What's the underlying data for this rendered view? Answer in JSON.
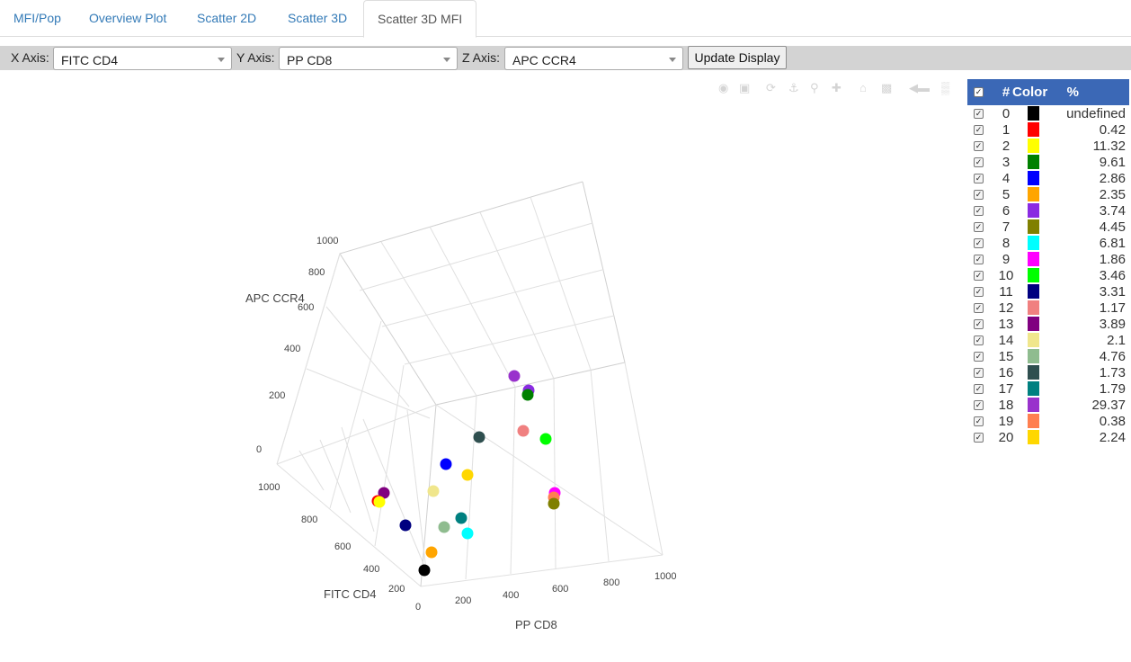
{
  "tabs": [
    {
      "label": "MFI/Pop",
      "active": false
    },
    {
      "label": "Overview Plot",
      "active": false
    },
    {
      "label": "Scatter 2D",
      "active": false
    },
    {
      "label": "Scatter 3D",
      "active": false
    },
    {
      "label": "Scatter 3D MFI",
      "active": true
    }
  ],
  "toolbar": {
    "x_label": "X Axis:",
    "x_value": "FITC CD4",
    "y_label": "Y Axis:",
    "y_value": "PP CD8",
    "z_label": "Z Axis:",
    "z_value": "APC CCR4",
    "update_label": "Update Display"
  },
  "modebar_icons": [
    "camera-icon",
    "save-icon",
    "orbit-rotation-icon",
    "turntable-rotation-icon",
    "zoom-icon",
    "pan-icon",
    "home-icon",
    "camera-reset-icon",
    "hover-closest-icon",
    "plotly-logo-icon"
  ],
  "plot": {
    "x_title": "FITC CD4",
    "y_title": "PP CD8",
    "z_title": "APC CCR4",
    "x_ticks": [
      "0",
      "200",
      "400",
      "600",
      "800",
      "1000"
    ],
    "y_ticks": [
      "200",
      "400",
      "600",
      "800",
      "1000"
    ],
    "z_ticks": [
      "0",
      "200",
      "400",
      "600",
      "800",
      "1000"
    ]
  },
  "legend": {
    "header": {
      "num": "#",
      "color": "Color",
      "pct": "%",
      "checked": true
    },
    "rows": [
      {
        "num": "0",
        "color": "#000000",
        "pct": "undefined"
      },
      {
        "num": "1",
        "color": "#ff0000",
        "pct": "0.42"
      },
      {
        "num": "2",
        "color": "#ffff00",
        "pct": "11.32"
      },
      {
        "num": "3",
        "color": "#008000",
        "pct": "9.61"
      },
      {
        "num": "4",
        "color": "#0000ff",
        "pct": "2.86"
      },
      {
        "num": "5",
        "color": "#ffa500",
        "pct": "2.35"
      },
      {
        "num": "6",
        "color": "#8a2be2",
        "pct": "3.74"
      },
      {
        "num": "7",
        "color": "#808000",
        "pct": "4.45"
      },
      {
        "num": "8",
        "color": "#00ffff",
        "pct": "6.81"
      },
      {
        "num": "9",
        "color": "#ff00ff",
        "pct": "1.86"
      },
      {
        "num": "10",
        "color": "#00ff00",
        "pct": "3.46"
      },
      {
        "num": "11",
        "color": "#000080",
        "pct": "3.31"
      },
      {
        "num": "12",
        "color": "#f08080",
        "pct": "1.17"
      },
      {
        "num": "13",
        "color": "#800080",
        "pct": "3.89"
      },
      {
        "num": "14",
        "color": "#f0e68c",
        "pct": "2.1"
      },
      {
        "num": "15",
        "color": "#8fbc8f",
        "pct": "4.76"
      },
      {
        "num": "16",
        "color": "#2f4f4f",
        "pct": "1.73"
      },
      {
        "num": "17",
        "color": "#008080",
        "pct": "1.79"
      },
      {
        "num": "18",
        "color": "#9932cc",
        "pct": "29.37"
      },
      {
        "num": "19",
        "color": "#ff7f50",
        "pct": "0.38"
      },
      {
        "num": "20",
        "color": "#ffd700",
        "pct": "2.24"
      }
    ]
  }
}
